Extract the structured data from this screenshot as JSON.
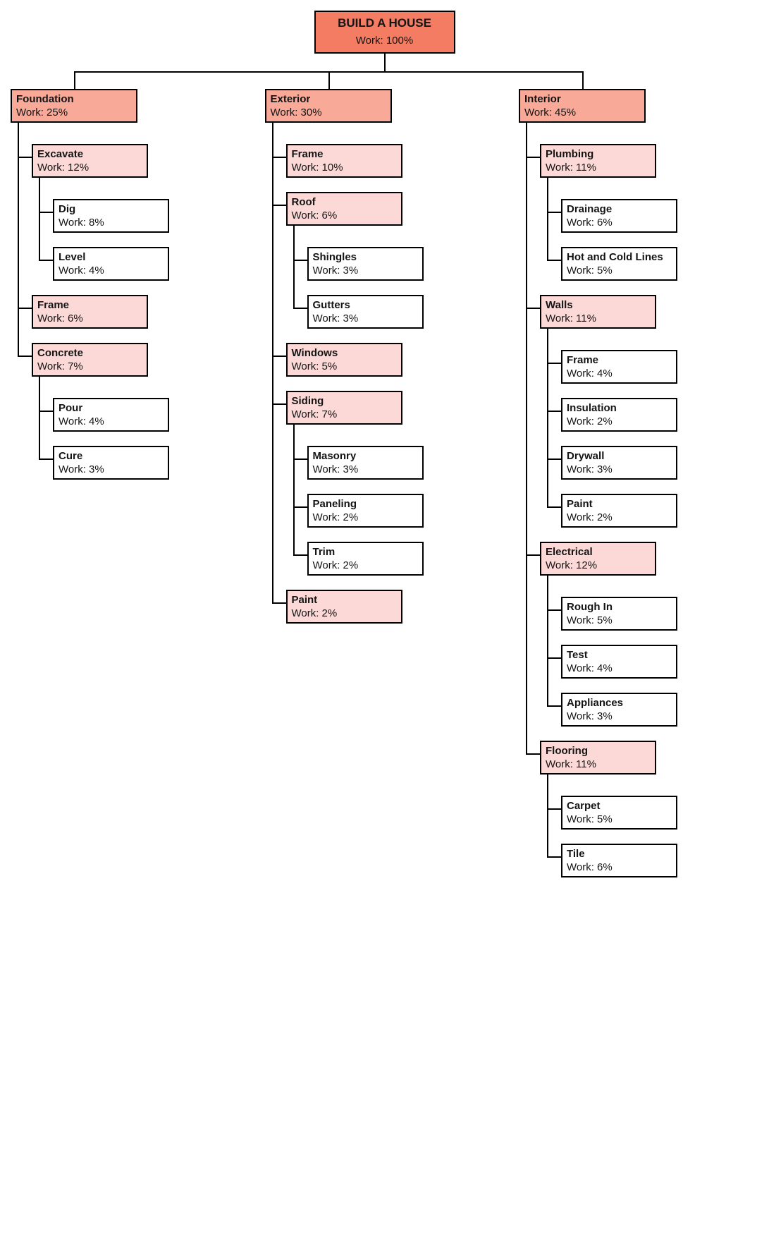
{
  "type": "tree",
  "colors": {
    "root_bg": "#f37c63",
    "level1_bg": "#f8a998",
    "level2_bg": "#fcd9d6",
    "level3_bg": "#ffffff",
    "border": "#000000",
    "text": "#141414"
  },
  "root": {
    "title": "BUILD A HOUSE",
    "work": "Work: 100%"
  },
  "branches": [
    {
      "title": "Foundation",
      "work": "Work: 25%",
      "children": [
        {
          "title": "Excavate",
          "work": "Work: 12%",
          "children": [
            {
              "title": "Dig",
              "work": "Work: 8%"
            },
            {
              "title": "Level",
              "work": "Work: 4%"
            }
          ]
        },
        {
          "title": "Frame",
          "work": "Work: 6%"
        },
        {
          "title": "Concrete",
          "work": "Work: 7%",
          "children": [
            {
              "title": "Pour",
              "work": "Work: 4%"
            },
            {
              "title": "Cure",
              "work": "Work: 3%"
            }
          ]
        }
      ]
    },
    {
      "title": "Exterior",
      "work": "Work: 30%",
      "children": [
        {
          "title": "Frame",
          "work": "Work: 10%"
        },
        {
          "title": "Roof",
          "work": "Work: 6%",
          "children": [
            {
              "title": "Shingles",
              "work": "Work: 3%"
            },
            {
              "title": "Gutters",
              "work": "Work: 3%"
            }
          ]
        },
        {
          "title": "Windows",
          "work": "Work: 5%"
        },
        {
          "title": "Siding",
          "work": "Work: 7%",
          "children": [
            {
              "title": "Masonry",
              "work": "Work: 3%"
            },
            {
              "title": "Paneling",
              "work": "Work: 2%"
            },
            {
              "title": "Trim",
              "work": "Work: 2%"
            }
          ]
        },
        {
          "title": "Paint",
          "work": "Work: 2%"
        }
      ]
    },
    {
      "title": "Interior",
      "work": "Work: 45%",
      "children": [
        {
          "title": "Plumbing",
          "work": "Work: 11%",
          "children": [
            {
              "title": "Drainage",
              "work": "Work: 6%"
            },
            {
              "title": "Hot and Cold Lines",
              "work": "Work: 5%"
            }
          ]
        },
        {
          "title": "Walls",
          "work": "Work: 11%",
          "children": [
            {
              "title": "Frame",
              "work": "Work: 4%"
            },
            {
              "title": "Insulation",
              "work": "Work: 2%"
            },
            {
              "title": "Drywall",
              "work": "Work: 3%"
            },
            {
              "title": "Paint",
              "work": "Work: 2%"
            }
          ]
        },
        {
          "title": "Electrical",
          "work": "Work: 12%",
          "children": [
            {
              "title": "Rough In",
              "work": "Work: 5%"
            },
            {
              "title": "Test",
              "work": "Work: 4%"
            },
            {
              "title": "Appliances",
              "work": "Work: 3%"
            }
          ]
        },
        {
          "title": "Flooring",
          "work": "Work: 11%",
          "children": [
            {
              "title": "Carpet",
              "work": "Work: 5%"
            },
            {
              "title": "Tile",
              "work": "Work: 6%"
            }
          ]
        }
      ]
    }
  ]
}
